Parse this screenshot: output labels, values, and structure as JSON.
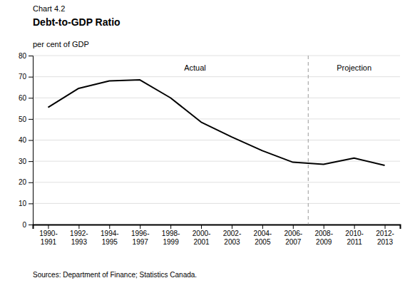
{
  "chart_data": {
    "type": "line",
    "subtitle": "Chart 4.2",
    "title": "Debt-to-GDP Ratio",
    "ylabel": "per cent of GDP",
    "source": "Sources: Department of Finance; Statistics Canada.",
    "categories": [
      "1990-\n1991",
      "1992-\n1993",
      "1994-\n1995",
      "1996-\n1997",
      "1998-\n1999",
      "2000-\n2001",
      "2002-\n2003",
      "2004-\n2005",
      "2006-\n2007",
      "2008-\n2009",
      "2010-\n2011",
      "2012-\n2013"
    ],
    "values": [
      55.5,
      64.5,
      68.0,
      68.5,
      60.0,
      48.5,
      41.5,
      35.0,
      29.5,
      28.5,
      31.5,
      28.0
    ],
    "color": "#000000",
    "ylim": [
      0,
      80
    ],
    "yticks": [
      0,
      10,
      20,
      30,
      40,
      50,
      60,
      70,
      80
    ],
    "grid": true,
    "annotations": [
      {
        "text": "Actual",
        "x": 4.8,
        "y": 73
      },
      {
        "text": "Projection",
        "x": 10.0,
        "y": 73
      },
      {
        "type": "vline",
        "x": 8.5,
        "color": "#999999",
        "line_style": "dashed"
      }
    ]
  }
}
